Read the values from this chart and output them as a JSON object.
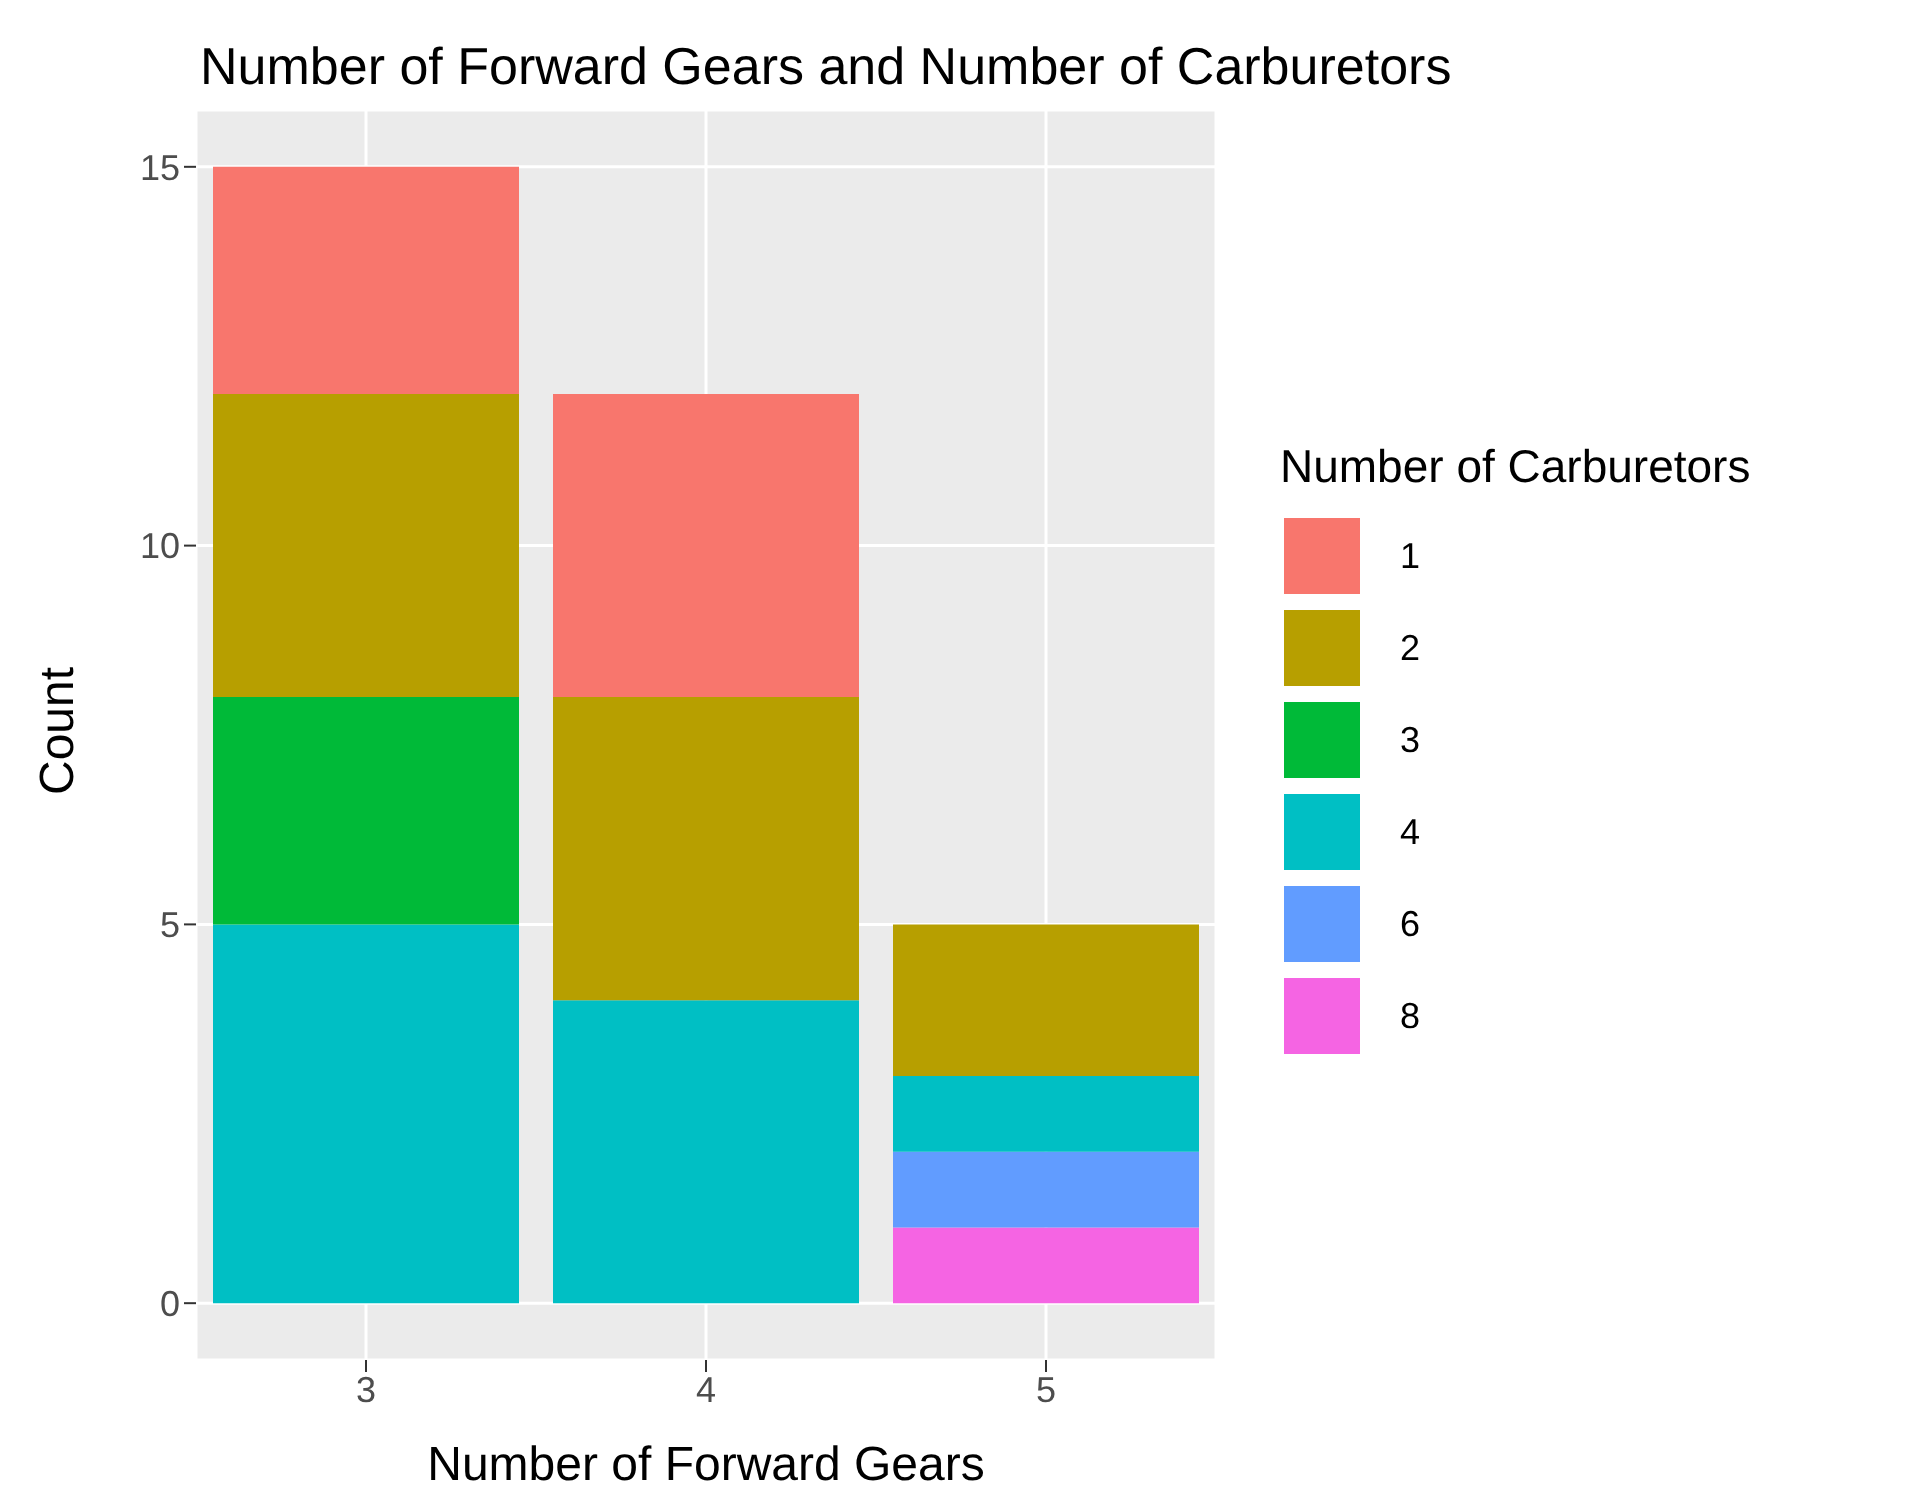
{
  "chart_data": {
    "type": "bar",
    "title": "Number of Forward Gears and Number of Carburetors",
    "xlabel": "Number of Forward Gears",
    "ylabel": "Count",
    "legend_title": "Number of Carburetors",
    "categories": [
      "3",
      "4",
      "5"
    ],
    "stacked": true,
    "series": [
      {
        "name": "8",
        "color": "#f564e3",
        "values": [
          0,
          0,
          1
        ]
      },
      {
        "name": "6",
        "color": "#619cff",
        "values": [
          0,
          0,
          1
        ]
      },
      {
        "name": "4",
        "color": "#00bfc4",
        "values": [
          5,
          4,
          1
        ]
      },
      {
        "name": "3",
        "color": "#00ba38",
        "values": [
          3,
          0,
          0
        ]
      },
      {
        "name": "2",
        "color": "#b79f00",
        "values": [
          4,
          4,
          2
        ]
      },
      {
        "name": "1",
        "color": "#f8766d",
        "values": [
          3,
          4,
          0
        ]
      }
    ],
    "ylim": [
      -0.75,
      15.75
    ],
    "yticks": [
      0,
      5,
      10,
      15
    ],
    "grid": true,
    "legend": "right"
  }
}
